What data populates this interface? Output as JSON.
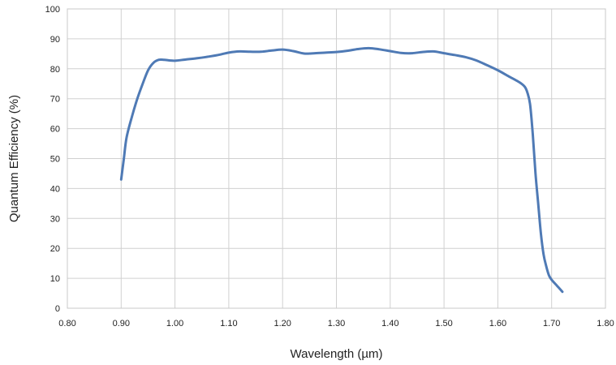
{
  "chart_data": {
    "type": "line",
    "title": "",
    "xlabel": "Wavelength (µm)",
    "ylabel": "Quantum Efficiency (%)",
    "xlim": [
      0.8,
      1.8
    ],
    "ylim": [
      0,
      100
    ],
    "x_ticks": [
      "0.80",
      "0.90",
      "1.00",
      "1.10",
      "1.20",
      "1.30",
      "1.40",
      "1.50",
      "1.60",
      "1.70",
      "1.80"
    ],
    "y_ticks": [
      "0",
      "10",
      "20",
      "30",
      "40",
      "50",
      "60",
      "70",
      "80",
      "90",
      "100"
    ],
    "grid": true,
    "legend": "none",
    "series": [
      {
        "color": "#4f7ab5",
        "x": [
          0.9,
          0.905,
          0.91,
          0.92,
          0.93,
          0.94,
          0.95,
          0.96,
          0.97,
          0.98,
          0.99,
          1.0,
          1.02,
          1.04,
          1.06,
          1.08,
          1.1,
          1.12,
          1.14,
          1.16,
          1.18,
          1.2,
          1.22,
          1.24,
          1.26,
          1.28,
          1.3,
          1.32,
          1.34,
          1.36,
          1.38,
          1.4,
          1.42,
          1.44,
          1.46,
          1.48,
          1.5,
          1.52,
          1.54,
          1.56,
          1.58,
          1.6,
          1.62,
          1.64,
          1.65,
          1.655,
          1.66,
          1.665,
          1.67,
          1.675,
          1.68,
          1.685,
          1.69,
          1.695,
          1.7,
          1.71,
          1.72
        ],
        "y": [
          43,
          50,
          57,
          64,
          70,
          75,
          79.5,
          82,
          83,
          83,
          82.8,
          82.7,
          83.1,
          83.5,
          84.0,
          84.6,
          85.4,
          85.8,
          85.7,
          85.7,
          86.1,
          86.4,
          85.9,
          85.1,
          85.2,
          85.4,
          85.6,
          86.0,
          86.6,
          86.9,
          86.5,
          85.9,
          85.3,
          85.2,
          85.6,
          85.8,
          85.2,
          84.6,
          83.9,
          82.8,
          81.2,
          79.5,
          77.5,
          75.5,
          74.0,
          72.0,
          68.0,
          58.0,
          45.0,
          35.0,
          25.0,
          18.0,
          14.0,
          11.0,
          9.5,
          7.5,
          5.5
        ]
      }
    ]
  }
}
